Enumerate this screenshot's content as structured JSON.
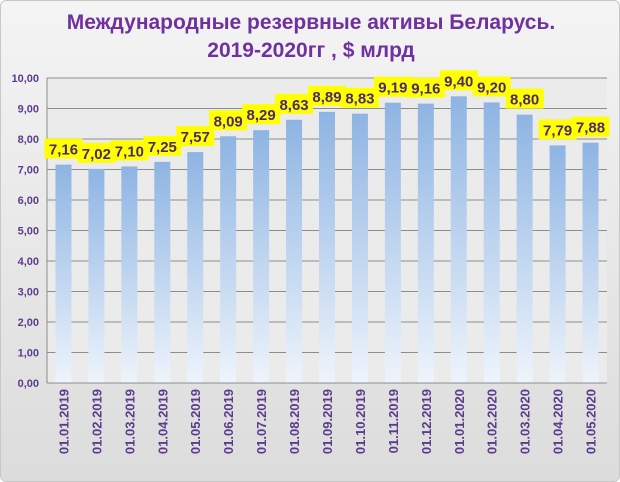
{
  "chart_data": {
    "type": "bar",
    "title_line1": "Международные резервные активы Беларусь.",
    "title_line2": "2019-2020гг , $ млрд",
    "categories": [
      "01.01.2019",
      "01.02.2019",
      "01.03.2019",
      "01.04.2019",
      "01.05.2019",
      "01.06.2019",
      "01.07.2019",
      "01.08.2019",
      "01.09.2019",
      "01.10.2019",
      "01.11.2019",
      "01.12.2019",
      "01.01.2020",
      "01.02.2020",
      "01.03.2020",
      "01.04.2020",
      "01.05.2020"
    ],
    "values": [
      7.16,
      7.02,
      7.1,
      7.25,
      7.57,
      8.09,
      8.29,
      8.63,
      8.89,
      8.83,
      9.19,
      9.16,
      9.4,
      9.2,
      8.8,
      7.79,
      7.88
    ],
    "data_labels": [
      "7,16",
      "7,02",
      "7,10",
      "7,25",
      "7,57",
      "8,09",
      "8,29",
      "8,63",
      "8,89",
      "8,83",
      "9,19",
      "9,16",
      "9,40",
      "9,20",
      "8,80",
      "7,79",
      "7,88"
    ],
    "yticks": [
      "0,00",
      "1,00",
      "2,00",
      "3,00",
      "4,00",
      "5,00",
      "6,00",
      "7,00",
      "8,00",
      "9,00",
      "10,00"
    ],
    "ylim": [
      0,
      10
    ],
    "xlabel": "",
    "ylabel": "",
    "grid": true,
    "colors": {
      "bar": "#8eb4e3",
      "title": "#7030a0",
      "tick": "#5b3b8c",
      "label_bg": "#ffff00",
      "label_text": "#4b2a6e"
    }
  }
}
